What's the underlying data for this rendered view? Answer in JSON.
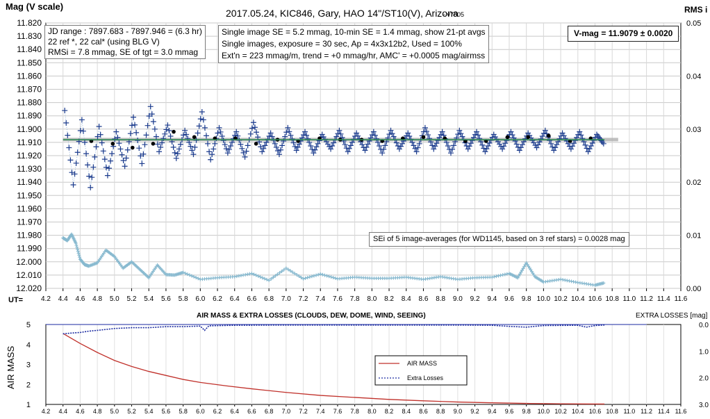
{
  "chart_data": [
    {
      "type": "scatter",
      "title": "2017.05.24,  KIC846,  Gary,  HAO 14\"/ST10(V),  Arizona",
      "version": "- v7605",
      "ylabel": "Mag (V scale)",
      "y2label": "RMS i",
      "xlabel": "UT=",
      "xlim": [
        4.2,
        11.6
      ],
      "ylim": [
        11.82,
        12.02
      ],
      "y_inverted": true,
      "y2lim": [
        0,
        0.05
      ],
      "grid": true,
      "x_ticks": [
        "4.2",
        "4.4",
        "4.6",
        "4.8",
        "5.0",
        "5.2",
        "5.4",
        "5.6",
        "5.8",
        "6.0",
        "6.2",
        "6.4",
        "6.6",
        "6.8",
        "7.0",
        "7.2",
        "7.4",
        "7.6",
        "7.8",
        "8.0",
        "8.2",
        "8.4",
        "8.6",
        "8.8",
        "9.0",
        "9.2",
        "9.4",
        "9.6",
        "9.8",
        "10.0",
        "10.2",
        "10.4",
        "10.6",
        "10.8",
        "11.0",
        "11.2",
        "11.4",
        "11.6"
      ],
      "y_ticks": [
        "11.820",
        "11.830",
        "11.840",
        "11.850",
        "11.860",
        "11.870",
        "11.880",
        "11.890",
        "11.900",
        "11.910",
        "11.920",
        "11.930",
        "11.940",
        "11.950",
        "11.960",
        "11.970",
        "11.980",
        "11.990",
        "12.000",
        "12.010",
        "12.020"
      ],
      "y2_ticks": [
        "0.05",
        "0.04",
        "0.03",
        "0.02",
        "0.01",
        "0.00"
      ],
      "info_box_1": [
        "JD range : 7897.683 - 7897.946 = (6.3 hr)",
        "22 ref *, 22 cal* (using BLG V)",
        "RMSi = 7.8 mmag, SE of tgt = 3.0 mmag"
      ],
      "info_box_2": [
        "Single image SE = 5.2 mmag, 10-min SE = 1.4 mmag, show 21-pt avgs",
        "Single images, exposure = 30 sec, Ap = 4x3x12b2, Used = 100%",
        "Ext'n = 223 mmag/m, trend = +0 mmag/hr, AMC' = +0.0005 mag/airmss"
      ],
      "vmag_label": "V-mag = 11.9079 ± 0.0020",
      "se_note": "SEi of 5 image-averages (for WD1145, based on 3 ref stars) = 0.0028 mag",
      "reference_level": 11.9079,
      "x_range": [
        4.4,
        10.71
      ],
      "series": [
        {
          "name": "",
          "kind": "single-image magnitudes",
          "color": "#1a3a8c",
          "marker": "plus",
          "x": [
            4.42,
            4.52,
            4.62,
            4.72,
            4.82,
            4.92,
            5.02,
            5.12,
            5.22,
            5.32,
            5.42,
            5.52,
            5.62,
            5.72,
            5.82,
            5.92,
            6.02,
            6.12,
            6.22,
            6.32,
            6.42,
            6.52,
            6.62,
            6.72,
            6.82,
            6.92,
            7.02,
            7.12,
            7.22,
            7.32,
            7.42,
            7.52,
            7.62,
            7.72,
            7.82,
            7.92,
            8.02,
            8.12,
            8.22,
            8.32,
            8.42,
            8.52,
            8.62,
            8.72,
            8.82,
            8.92,
            9.02,
            9.12,
            9.22,
            9.32,
            9.42,
            9.52,
            9.62,
            9.72,
            9.82,
            9.92,
            10.02,
            10.12,
            10.22,
            10.32,
            10.42,
            10.52,
            10.62,
            10.7
          ],
          "y": [
            11.886,
            11.942,
            11.893,
            11.944,
            11.898,
            11.935,
            11.902,
            11.928,
            11.891,
            11.926,
            11.883,
            11.917,
            11.897,
            11.922,
            11.901,
            11.919,
            11.887,
            11.923,
            11.899,
            11.918,
            11.902,
            11.921,
            11.895,
            11.917,
            11.903,
            11.919,
            11.899,
            11.916,
            11.902,
            11.918,
            11.904,
            11.915,
            11.901,
            11.917,
            11.903,
            11.916,
            11.902,
            11.918,
            11.901,
            11.915,
            11.903,
            11.917,
            11.899,
            11.915,
            11.902,
            11.918,
            11.901,
            11.915,
            11.902,
            11.917,
            11.904,
            11.915,
            11.902,
            11.916,
            11.903,
            11.914,
            11.901,
            11.916,
            11.903,
            11.915,
            11.902,
            11.917,
            11.904,
            11.911
          ]
        },
        {
          "name": "",
          "kind": "21-pt averages",
          "color": "#000000",
          "marker": "dot",
          "x": [
            4.73,
            4.98,
            5.21,
            5.45,
            5.69,
            5.93,
            6.17,
            6.41,
            6.65,
            6.9,
            7.14,
            7.39,
            7.63,
            7.88,
            8.12,
            8.36,
            8.6,
            8.85,
            9.09,
            9.33,
            9.58,
            9.82,
            10.06,
            10.31,
            10.55
          ],
          "y": [
            11.909,
            11.911,
            11.914,
            11.911,
            11.902,
            11.906,
            11.907,
            11.907,
            11.911,
            11.908,
            11.909,
            11.907,
            11.908,
            11.908,
            11.909,
            11.907,
            11.906,
            11.907,
            11.909,
            11.909,
            11.906,
            11.906,
            11.905,
            11.909,
            11.907
          ]
        },
        {
          "name": "",
          "kind": "trend fit",
          "color": "#2e8b57",
          "x": [
            4.4,
            10.71
          ],
          "y": [
            11.908,
            11.908
          ]
        },
        {
          "name": "",
          "kind": "RMS i (right axis)",
          "color": "#87b9cf",
          "marker": "plus",
          "axis": "y2",
          "x": [
            4.4,
            4.45,
            4.5,
            4.55,
            4.6,
            4.65,
            4.7,
            4.8,
            4.9,
            5.0,
            5.1,
            5.2,
            5.3,
            5.4,
            5.5,
            5.6,
            5.7,
            5.8,
            6.0,
            6.2,
            6.4,
            6.6,
            6.8,
            7.0,
            7.2,
            7.4,
            7.6,
            7.8,
            8.0,
            8.2,
            8.4,
            8.6,
            8.8,
            9.0,
            9.2,
            9.4,
            9.6,
            9.7,
            9.8,
            9.9,
            10.0,
            10.2,
            10.4,
            10.6,
            10.7
          ],
          "y": [
            0.0095,
            0.009,
            0.0102,
            0.0085,
            0.0055,
            0.0045,
            0.0042,
            0.0048,
            0.0072,
            0.006,
            0.0038,
            0.005,
            0.0035,
            0.002,
            0.0044,
            0.0026,
            0.0025,
            0.003,
            0.0017,
            0.002,
            0.0022,
            0.0028,
            0.0015,
            0.0038,
            0.0018,
            0.0027,
            0.0018,
            0.0021,
            0.0019,
            0.0019,
            0.0021,
            0.0017,
            0.0022,
            0.0017,
            0.002,
            0.0021,
            0.0028,
            0.002,
            0.0048,
            0.0022,
            0.0012,
            0.0017,
            0.0011,
            0.0006,
            0.001
          ]
        }
      ]
    },
    {
      "type": "line",
      "title": "AIR MASS & EXTRA LOSSES (CLOUDS, DEW, DOME, WIND, SEEING)",
      "ylabel": "AIR MASS",
      "y2label": "EXTRA LOSSES [mag]",
      "xlim": [
        4.2,
        11.6
      ],
      "ylim": [
        1,
        5
      ],
      "y2lim": [
        0,
        3
      ],
      "y2_inverted": true,
      "x_ticks": [
        "4.2",
        "4.4",
        "4.6",
        "4.8",
        "5.0",
        "5.2",
        "5.4",
        "5.6",
        "5.8",
        "6.0",
        "6.2",
        "6.4",
        "6.6",
        "6.8",
        "7.0",
        "7.2",
        "7.4",
        "7.6",
        "7.8",
        "8.0",
        "8.2",
        "8.4",
        "8.6",
        "8.8",
        "9.0",
        "9.2",
        "9.4",
        "9.6",
        "9.8",
        "10.0",
        "10.2",
        "10.4",
        "10.6",
        "10.8",
        "11.0",
        "11.2",
        "11.4",
        "11.6"
      ],
      "y_ticks": [
        "5",
        "4",
        "3",
        "2",
        "1"
      ],
      "y2_ticks": [
        "0.0",
        "1.0",
        "2.0",
        "3.0"
      ],
      "legend": [
        "AIR MASS",
        "Extra Losses"
      ],
      "legend_position": "lower-middle",
      "series": [
        {
          "name": "AIR MASS",
          "color": "#c0302a",
          "x": [
            4.4,
            4.6,
            4.8,
            5.0,
            5.2,
            5.4,
            5.6,
            5.8,
            6.0,
            6.3,
            6.6,
            7.0,
            7.4,
            7.8,
            8.2,
            8.6,
            9.0,
            9.4,
            9.8,
            10.2,
            10.6,
            10.71
          ],
          "y": [
            4.55,
            4.05,
            3.6,
            3.2,
            2.9,
            2.65,
            2.45,
            2.25,
            2.1,
            1.93,
            1.78,
            1.6,
            1.45,
            1.35,
            1.25,
            1.18,
            1.12,
            1.08,
            1.05,
            1.03,
            1.02,
            1.02
          ]
        },
        {
          "name": "Extra Losses",
          "color": "#1a2aa0",
          "axis": "y2",
          "x": [
            4.4,
            4.5,
            4.6,
            4.7,
            4.8,
            5.0,
            5.2,
            5.4,
            5.6,
            5.8,
            6.0,
            6.05,
            6.1,
            6.4,
            7.0,
            8.0,
            9.0,
            9.4,
            9.6,
            9.8,
            10.0,
            10.4,
            10.5,
            10.6,
            10.71
          ],
          "y": [
            0.35,
            0.32,
            0.3,
            0.25,
            0.22,
            0.15,
            0.12,
            0.12,
            0.08,
            0.08,
            0.06,
            0.22,
            0.05,
            0.03,
            0.02,
            0.02,
            0.02,
            0.03,
            0.07,
            0.1,
            0.04,
            0.03,
            0.1,
            0.04,
            0.02
          ]
        },
        {
          "name": "",
          "kind": "reference level",
          "color": "#1a2aa0",
          "axis": "y2",
          "x": [
            4.2,
            11.2
          ],
          "y": [
            0,
            0
          ]
        }
      ]
    }
  ]
}
